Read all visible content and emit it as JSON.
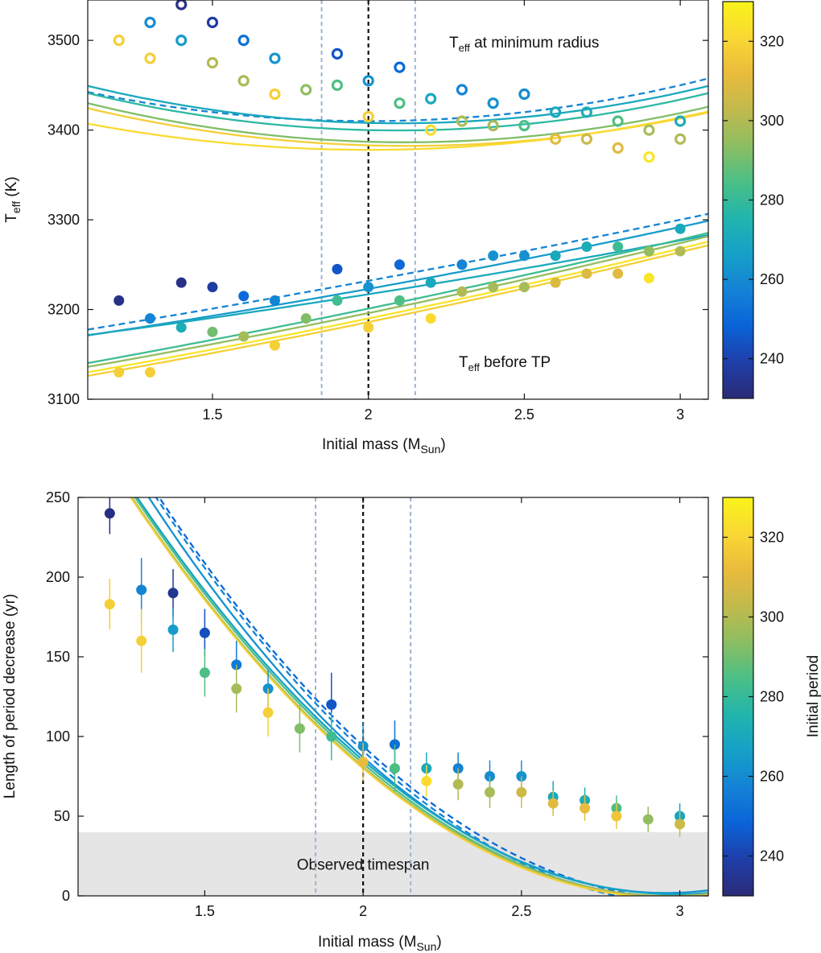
{
  "chart_data": [
    {
      "type": "scatter",
      "xlabel": "Initial mass (M",
      "xlabel_sub": "Sun",
      "xlabel_end": ")",
      "ylabel": "T",
      "ylabel_sub": "eff",
      "ylabel_end": " (K)",
      "xlim": [
        1.1,
        3.09
      ],
      "ylim": [
        3100,
        3545
      ],
      "xticks": [
        "1.5",
        "2",
        "2.5",
        "3"
      ],
      "xtick_values": [
        1.5,
        2,
        2.5,
        3
      ],
      "yticks": [
        "3100",
        "3200",
        "3300",
        "3400",
        "3500"
      ],
      "ytick_values": [
        3100,
        3200,
        3300,
        3400,
        3500
      ],
      "annotations": {
        "upper": {
          "main": "T",
          "sub": "eff",
          "rest": " at minimum radius",
          "x": 2.3,
          "y": 3500
        },
        "lower": {
          "main": "T",
          "sub": "eff",
          "rest": " before TP",
          "x": 2.3,
          "y": 3140
        }
      },
      "vlines": [
        {
          "x": 1.85,
          "style": "dashed",
          "color": "#9db4d1"
        },
        {
          "x": 2.0,
          "style": "dashed",
          "color": "#111111"
        },
        {
          "x": 2.15,
          "style": "dashed",
          "color": "#9db4d1"
        }
      ],
      "series": [
        {
          "name": "Teff at minimum radius",
          "marker": "open-circle",
          "points": [
            {
              "x": 1.2,
              "y": 3500,
              "c": 318
            },
            {
              "x": 1.3,
              "y": 3520,
              "c": 260
            },
            {
              "x": 1.3,
              "y": 3480,
              "c": 318
            },
            {
              "x": 1.4,
              "y": 3540,
              "c": 233
            },
            {
              "x": 1.4,
              "y": 3500,
              "c": 265
            },
            {
              "x": 1.5,
              "y": 3520,
              "c": 238
            },
            {
              "x": 1.5,
              "y": 3475,
              "c": 300
            },
            {
              "x": 1.6,
              "y": 3500,
              "c": 252
            },
            {
              "x": 1.6,
              "y": 3455,
              "c": 298
            },
            {
              "x": 1.7,
              "y": 3480,
              "c": 263
            },
            {
              "x": 1.7,
              "y": 3440,
              "c": 318
            },
            {
              "x": 1.8,
              "y": 3445,
              "c": 294
            },
            {
              "x": 1.9,
              "y": 3485,
              "c": 245
            },
            {
              "x": 1.9,
              "y": 3450,
              "c": 285
            },
            {
              "x": 2.0,
              "y": 3455,
              "c": 262
            },
            {
              "x": 2.0,
              "y": 3415,
              "c": 318
            },
            {
              "x": 2.1,
              "y": 3470,
              "c": 250
            },
            {
              "x": 2.1,
              "y": 3430,
              "c": 285
            },
            {
              "x": 2.2,
              "y": 3435,
              "c": 270
            },
            {
              "x": 2.2,
              "y": 3400,
              "c": 322
            },
            {
              "x": 2.3,
              "y": 3445,
              "c": 258
            },
            {
              "x": 2.3,
              "y": 3410,
              "c": 300
            },
            {
              "x": 2.4,
              "y": 3430,
              "c": 262
            },
            {
              "x": 2.4,
              "y": 3405,
              "c": 298
            },
            {
              "x": 2.5,
              "y": 3440,
              "c": 260
            },
            {
              "x": 2.5,
              "y": 3405,
              "c": 285
            },
            {
              "x": 2.6,
              "y": 3420,
              "c": 270
            },
            {
              "x": 2.6,
              "y": 3390,
              "c": 310
            },
            {
              "x": 2.7,
              "y": 3420,
              "c": 272
            },
            {
              "x": 2.7,
              "y": 3390,
              "c": 305
            },
            {
              "x": 2.8,
              "y": 3410,
              "c": 285
            },
            {
              "x": 2.8,
              "y": 3380,
              "c": 310
            },
            {
              "x": 2.9,
              "y": 3400,
              "c": 298
            },
            {
              "x": 2.9,
              "y": 3370,
              "c": 325
            },
            {
              "x": 3.0,
              "y": 3410,
              "c": 272
            },
            {
              "x": 3.0,
              "y": 3390,
              "c": 300
            }
          ]
        },
        {
          "name": "Teff before TP",
          "marker": "filled-circle",
          "points": [
            {
              "x": 1.2,
              "y": 3210,
              "c": 233
            },
            {
              "x": 1.2,
              "y": 3130,
              "c": 318
            },
            {
              "x": 1.3,
              "y": 3190,
              "c": 258
            },
            {
              "x": 1.3,
              "y": 3130,
              "c": 318
            },
            {
              "x": 1.4,
              "y": 3230,
              "c": 233
            },
            {
              "x": 1.4,
              "y": 3180,
              "c": 272
            },
            {
              "x": 1.5,
              "y": 3225,
              "c": 238
            },
            {
              "x": 1.5,
              "y": 3175,
              "c": 290
            },
            {
              "x": 1.6,
              "y": 3215,
              "c": 250
            },
            {
              "x": 1.6,
              "y": 3170,
              "c": 298
            },
            {
              "x": 1.7,
              "y": 3210,
              "c": 258
            },
            {
              "x": 1.7,
              "y": 3160,
              "c": 318
            },
            {
              "x": 1.8,
              "y": 3190,
              "c": 292
            },
            {
              "x": 1.9,
              "y": 3245,
              "c": 245
            },
            {
              "x": 1.9,
              "y": 3210,
              "c": 282
            },
            {
              "x": 2.0,
              "y": 3225,
              "c": 262
            },
            {
              "x": 2.0,
              "y": 3180,
              "c": 318
            },
            {
              "x": 2.1,
              "y": 3250,
              "c": 250
            },
            {
              "x": 2.1,
              "y": 3210,
              "c": 285
            },
            {
              "x": 2.2,
              "y": 3230,
              "c": 270
            },
            {
              "x": 2.2,
              "y": 3190,
              "c": 322
            },
            {
              "x": 2.3,
              "y": 3250,
              "c": 258
            },
            {
              "x": 2.3,
              "y": 3220,
              "c": 300
            },
            {
              "x": 2.4,
              "y": 3260,
              "c": 262
            },
            {
              "x": 2.4,
              "y": 3225,
              "c": 298
            },
            {
              "x": 2.5,
              "y": 3260,
              "c": 262
            },
            {
              "x": 2.5,
              "y": 3225,
              "c": 298
            },
            {
              "x": 2.6,
              "y": 3260,
              "c": 270
            },
            {
              "x": 2.6,
              "y": 3230,
              "c": 308
            },
            {
              "x": 2.7,
              "y": 3270,
              "c": 272
            },
            {
              "x": 2.7,
              "y": 3240,
              "c": 308
            },
            {
              "x": 2.8,
              "y": 3270,
              "c": 282
            },
            {
              "x": 2.8,
              "y": 3240,
              "c": 310
            },
            {
              "x": 2.9,
              "y": 3265,
              "c": 295
            },
            {
              "x": 2.9,
              "y": 3235,
              "c": 325
            },
            {
              "x": 3.0,
              "y": 3290,
              "c": 270
            },
            {
              "x": 3.0,
              "y": 3265,
              "c": 300
            }
          ]
        }
      ],
      "fits": [
        {
          "name": "fit-upper-dashed",
          "style": "dashed",
          "c": 258,
          "coeffs": [
            3410,
            0.0,
            40
          ]
        },
        {
          "name": "fit-upper-1",
          "style": "solid",
          "c": 270,
          "coeffs": [
            3408,
            -8,
            42
          ]
        },
        {
          "name": "fit-upper-2",
          "style": "solid",
          "c": 278,
          "coeffs": [
            3400,
            -8,
            42
          ]
        },
        {
          "name": "fit-upper-3",
          "style": "solid",
          "c": 292,
          "coeffs": [
            3387,
            -10,
            42
          ]
        },
        {
          "name": "fit-upper-4",
          "style": "solid",
          "c": 318,
          "coeffs": [
            3383,
            -10,
            40
          ]
        },
        {
          "name": "fit-upper-5",
          "style": "solid",
          "c": 322,
          "coeffs": [
            3378,
            0,
            36
          ]
        },
        {
          "name": "fit-lower-dashed",
          "style": "dashed",
          "c": 258,
          "coeffs": [
            3232,
            64,
            4
          ]
        },
        {
          "name": "fit-lower-1",
          "style": "solid",
          "c": 265,
          "coeffs": [
            3223,
            63,
            6
          ]
        },
        {
          "name": "fit-lower-2",
          "style": "solid",
          "c": 270,
          "coeffs": [
            3217,
            55,
            5
          ]
        },
        {
          "name": "fit-lower-3",
          "style": "solid",
          "c": 282,
          "coeffs": [
            3201,
            72,
            5
          ]
        },
        {
          "name": "fit-lower-4",
          "style": "solid",
          "c": 295,
          "coeffs": [
            3196,
            72,
            6
          ]
        },
        {
          "name": "fit-lower-5",
          "style": "solid",
          "c": 318,
          "coeffs": [
            3186,
            72,
            6
          ]
        },
        {
          "name": "fit-lower-6",
          "style": "solid",
          "c": 325,
          "coeffs": [
            3190,
            72,
            6
          ]
        }
      ],
      "colorbar": {
        "min": 230,
        "max": 330,
        "ticks": [
          "240",
          "260",
          "280",
          "300",
          "320"
        ],
        "tick_values": [
          240,
          260,
          280,
          300,
          320
        ],
        "label": ""
      }
    },
    {
      "type": "scatter",
      "xlabel": "Initial mass (M",
      "xlabel_sub": "Sun",
      "xlabel_end": ")",
      "ylabel": "Length of period decrease (yr)",
      "xlim": [
        1.1,
        3.09
      ],
      "ylim": [
        0,
        250
      ],
      "xticks": [
        "1.5",
        "2",
        "2.5",
        "3"
      ],
      "xtick_values": [
        1.5,
        2,
        2.5,
        3
      ],
      "yticks": [
        "0",
        "50",
        "100",
        "150",
        "200",
        "250"
      ],
      "ytick_values": [
        0,
        50,
        100,
        150,
        200,
        250
      ],
      "shaded_band": {
        "y0": 0,
        "y1": 40,
        "label": "Observed timespan",
        "label_x": 2.0,
        "label_y": 20
      },
      "vlines": [
        {
          "x": 1.85,
          "style": "dashed",
          "color": "#9db4d1"
        },
        {
          "x": 2.0,
          "style": "dashed",
          "color": "#111111"
        },
        {
          "x": 2.15,
          "style": "dashed",
          "color": "#9db4d1"
        }
      ],
      "series": [
        {
          "name": "Length of period decrease",
          "marker": "filled-circle-errorbar",
          "points": [
            {
              "x": 1.2,
              "y": 240,
              "err": 13,
              "c": 232
            },
            {
              "x": 1.2,
              "y": 183,
              "err": 16,
              "c": 318
            },
            {
              "x": 1.3,
              "y": 192,
              "err": 20,
              "c": 258
            },
            {
              "x": 1.3,
              "y": 160,
              "err": 20,
              "c": 318
            },
            {
              "x": 1.4,
              "y": 190,
              "err": 15,
              "c": 235
            },
            {
              "x": 1.4,
              "y": 167,
              "err": 14,
              "c": 265
            },
            {
              "x": 1.5,
              "y": 165,
              "err": 15,
              "c": 243
            },
            {
              "x": 1.5,
              "y": 140,
              "err": 15,
              "c": 285
            },
            {
              "x": 1.6,
              "y": 145,
              "err": 15,
              "c": 255
            },
            {
              "x": 1.6,
              "y": 130,
              "err": 15,
              "c": 298
            },
            {
              "x": 1.7,
              "y": 130,
              "err": 12,
              "c": 262
            },
            {
              "x": 1.7,
              "y": 115,
              "err": 15,
              "c": 318
            },
            {
              "x": 1.8,
              "y": 105,
              "err": 15,
              "c": 292
            },
            {
              "x": 1.9,
              "y": 120,
              "err": 20,
              "c": 245
            },
            {
              "x": 1.9,
              "y": 100,
              "err": 15,
              "c": 282
            },
            {
              "x": 2.0,
              "y": 94,
              "err": 15,
              "c": 262
            },
            {
              "x": 2.0,
              "y": 84,
              "err": 12,
              "c": 312
            },
            {
              "x": 2.1,
              "y": 95,
              "err": 15,
              "c": 252
            },
            {
              "x": 2.1,
              "y": 80,
              "err": 15,
              "c": 285
            },
            {
              "x": 2.2,
              "y": 80,
              "err": 10,
              "c": 270
            },
            {
              "x": 2.2,
              "y": 72,
              "err": 10,
              "c": 322
            },
            {
              "x": 2.3,
              "y": 80,
              "err": 10,
              "c": 258
            },
            {
              "x": 2.3,
              "y": 70,
              "err": 10,
              "c": 300
            },
            {
              "x": 2.4,
              "y": 75,
              "err": 10,
              "c": 260
            },
            {
              "x": 2.4,
              "y": 65,
              "err": 10,
              "c": 298
            },
            {
              "x": 2.5,
              "y": 75,
              "err": 10,
              "c": 262
            },
            {
              "x": 2.5,
              "y": 65,
              "err": 10,
              "c": 305
            },
            {
              "x": 2.6,
              "y": 62,
              "err": 10,
              "c": 270
            },
            {
              "x": 2.6,
              "y": 58,
              "err": 8,
              "c": 310
            },
            {
              "x": 2.7,
              "y": 60,
              "err": 8,
              "c": 272
            },
            {
              "x": 2.7,
              "y": 55,
              "err": 8,
              "c": 312
            },
            {
              "x": 2.8,
              "y": 55,
              "err": 8,
              "c": 285
            },
            {
              "x": 2.8,
              "y": 50,
              "err": 8,
              "c": 315
            },
            {
              "x": 2.9,
              "y": 48,
              "err": 8,
              "c": 295
            },
            {
              "x": 3.0,
              "y": 50,
              "err": 8,
              "c": 268
            },
            {
              "x": 3.0,
              "y": 45,
              "err": 8,
              "c": 305
            }
          ]
        }
      ],
      "fits": [
        {
          "name": "fit-dashed-1",
          "style": "dashed",
          "c": 250,
          "coeffs": [
            94,
            -185,
            89
          ]
        },
        {
          "name": "fit-dashed-2",
          "style": "dashed",
          "c": 258,
          "coeffs": [
            91,
            -185,
            89
          ]
        },
        {
          "name": "fit-1",
          "style": "solid",
          "c": 262,
          "coeffs": [
            87,
            -178,
            93
          ]
        },
        {
          "name": "fit-2",
          "style": "solid",
          "c": 268,
          "coeffs": [
            85,
            -170,
            86
          ]
        },
        {
          "name": "fit-3",
          "style": "solid",
          "c": 285,
          "coeffs": [
            83,
            -170,
            86
          ]
        },
        {
          "name": "fit-4",
          "style": "solid",
          "c": 298,
          "coeffs": [
            81,
            -168,
            87
          ]
        },
        {
          "name": "fit-5",
          "style": "solid",
          "c": 318,
          "coeffs": [
            80,
            -168,
            87
          ]
        }
      ],
      "colorbar": {
        "min": 230,
        "max": 330,
        "ticks": [
          "240",
          "260",
          "280",
          "300",
          "320"
        ],
        "tick_values": [
          240,
          260,
          280,
          300,
          320
        ],
        "label": "Initial period"
      }
    }
  ],
  "colormap": [
    "#2b2b78",
    "#1f3ea8",
    "#0a63d8",
    "#1482d6",
    "#16a0c8",
    "#21b5ad",
    "#4bbf86",
    "#8cbe62",
    "#c2b94d",
    "#e9bb3c",
    "#f9d833",
    "#f9f41a"
  ]
}
